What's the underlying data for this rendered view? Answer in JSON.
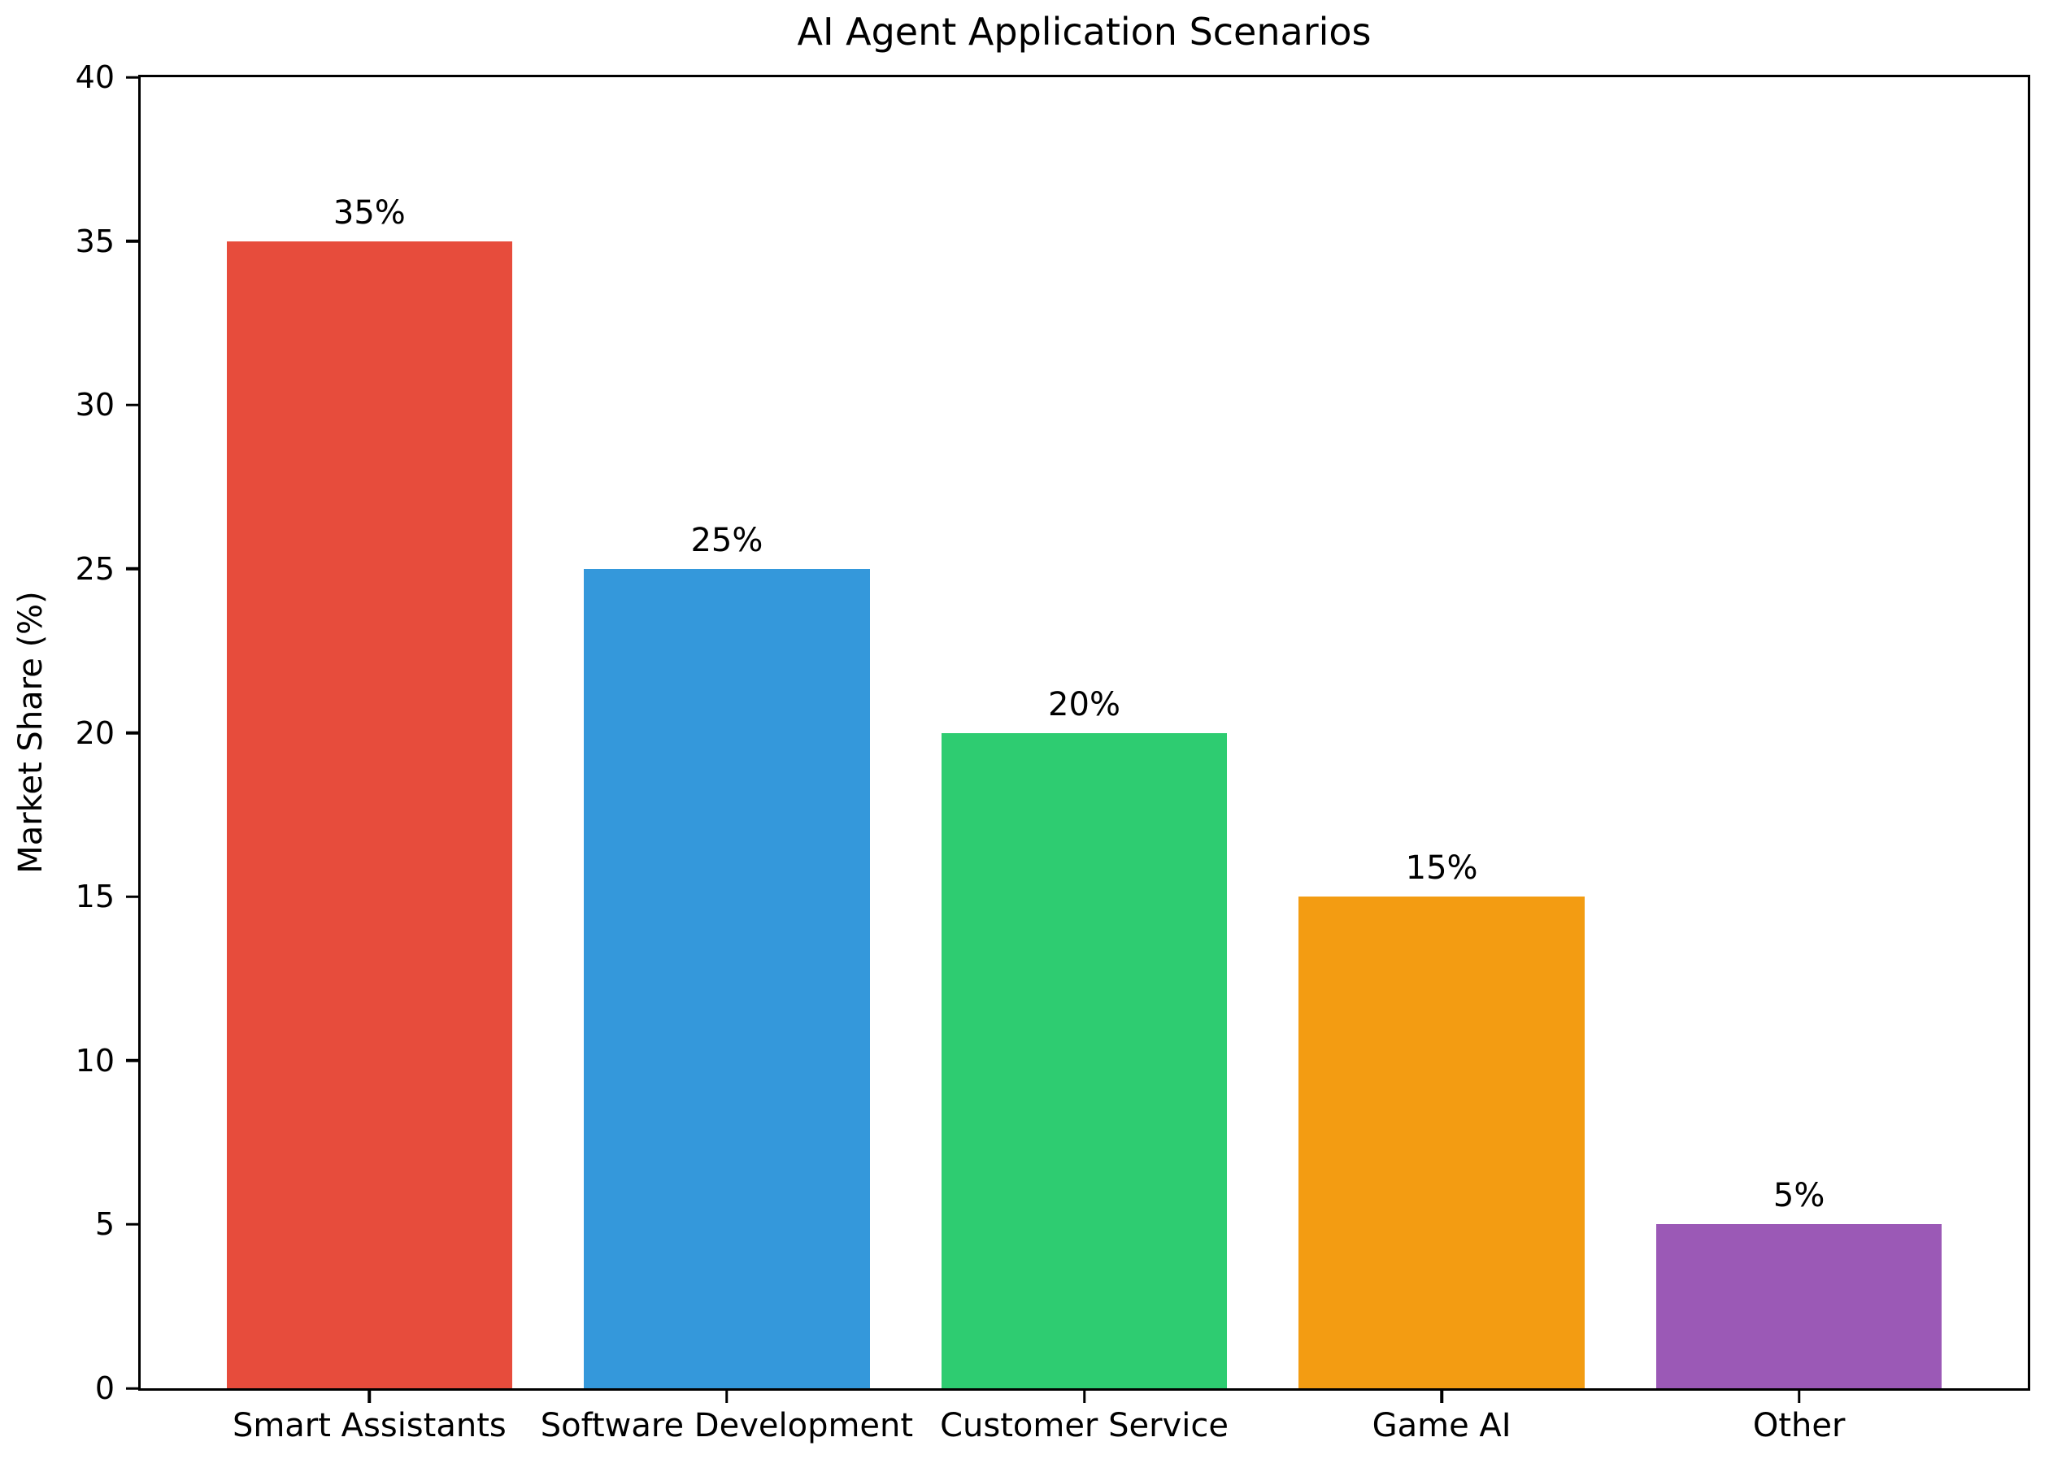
{
  "chart_data": {
    "type": "bar",
    "title": "AI Agent Application Scenarios",
    "xlabel": "",
    "ylabel": "Market Share (%)",
    "categories": [
      "Smart Assistants",
      "Software Development",
      "Customer Service",
      "Game AI",
      "Other"
    ],
    "values": [
      35,
      25,
      20,
      15,
      5
    ],
    "bar_labels": [
      "35%",
      "25%",
      "20%",
      "15%",
      "5%"
    ],
    "colors": [
      "#e74c3c",
      "#3498db",
      "#2ecc71",
      "#f39c12",
      "#9b59b6"
    ],
    "ylim": [
      0,
      40
    ],
    "yticks": [
      0,
      5,
      10,
      15,
      20,
      25,
      30,
      35,
      40
    ],
    "xlim": [
      -0.64,
      4.64
    ],
    "bar_width": 0.8,
    "grid": false,
    "legend": null,
    "spines": "full-box",
    "axis_color": "#000000"
  }
}
